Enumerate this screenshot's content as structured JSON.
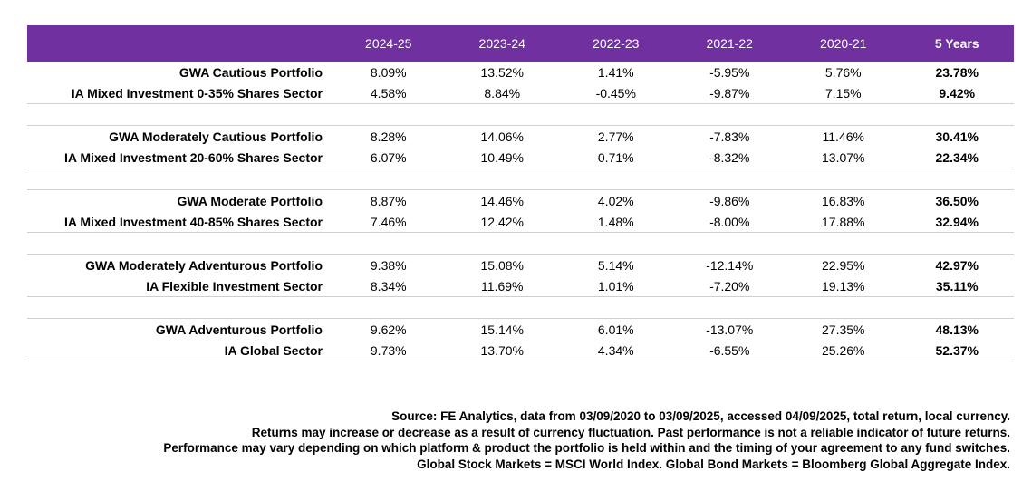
{
  "table": {
    "headers": [
      "",
      "2024-25",
      "2023-24",
      "2022-23",
      "2021-22",
      "2020-21",
      "5 Years"
    ],
    "groups": [
      {
        "rows": [
          {
            "label": "GWA Cautious Portfolio",
            "values": [
              "8.09%",
              "13.52%",
              "1.41%",
              "-5.95%",
              "5.76%"
            ],
            "total": "23.78%"
          },
          {
            "label": "IA Mixed Investment 0-35% Shares Sector",
            "values": [
              "4.58%",
              "8.84%",
              "-0.45%",
              "-9.87%",
              "7.15%"
            ],
            "total": "9.42%"
          }
        ]
      },
      {
        "rows": [
          {
            "label": "GWA Moderately Cautious Portfolio",
            "values": [
              "8.28%",
              "14.06%",
              "2.77%",
              "-7.83%",
              "11.46%"
            ],
            "total": "30.41%"
          },
          {
            "label": "IA Mixed Investment 20-60% Shares Sector",
            "values": [
              "6.07%",
              "10.49%",
              "0.71%",
              "-8.32%",
              "13.07%"
            ],
            "total": "22.34%"
          }
        ]
      },
      {
        "rows": [
          {
            "label": "GWA Moderate Portfolio",
            "values": [
              "8.87%",
              "14.46%",
              "4.02%",
              "-9.86%",
              "16.83%"
            ],
            "total": "36.50%"
          },
          {
            "label": "IA Mixed Investment 40-85% Shares Sector",
            "values": [
              "7.46%",
              "12.42%",
              "1.48%",
              "-8.00%",
              "17.88%"
            ],
            "total": "32.94%"
          }
        ]
      },
      {
        "rows": [
          {
            "label": "GWA Moderately Adventurous Portfolio",
            "values": [
              "9.38%",
              "15.08%",
              "5.14%",
              "-12.14%",
              "22.95%"
            ],
            "total": "42.97%"
          },
          {
            "label": "IA Flexible Investment Sector",
            "values": [
              "8.34%",
              "11.69%",
              "1.01%",
              "-7.20%",
              "19.13%"
            ],
            "total": "35.11%"
          }
        ]
      },
      {
        "rows": [
          {
            "label": "GWA Adventurous Portfolio",
            "values": [
              "9.62%",
              "15.14%",
              "6.01%",
              "-13.07%",
              "27.35%"
            ],
            "total": "48.13%"
          },
          {
            "label": "IA Global Sector",
            "values": [
              "9.73%",
              "13.70%",
              "4.34%",
              "-6.55%",
              "25.26%"
            ],
            "total": "52.37%"
          }
        ]
      }
    ]
  },
  "notes": [
    "Source: FE Analytics, data from 03/09/2020 to 03/09/2025, accessed 04/09/2025, total return, local currency.",
    "Returns may increase or decrease as a result of currency fluctuation. Past performance is not a reliable indicator of future returns.",
    "Performance may vary depending on which platform & product the portfolio is held within and the timing of your agreement to any fund switches.",
    "Global Stock Markets = MSCI World Index.  Global Bond Markets = Bloomberg Global Aggregate Index."
  ],
  "colors": {
    "header_bg": "#7030a0",
    "header_text": "#ffffff",
    "rule": "#cfcfcf"
  }
}
